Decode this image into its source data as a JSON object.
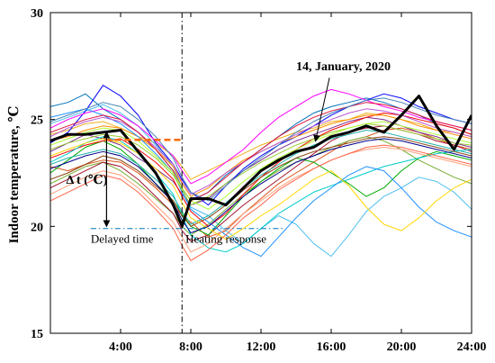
{
  "chart_data": {
    "type": "line",
    "ylabel": "Indoor temperature, ℃",
    "xlabel": "",
    "xlim": [
      0,
      24
    ],
    "ylim": [
      15,
      30
    ],
    "xticks": [
      {
        "v": 4,
        "label": "4:00"
      },
      {
        "v": 8,
        "label": "8:00"
      },
      {
        "v": 12,
        "label": "12:00"
      },
      {
        "v": 16,
        "label": "16:00"
      },
      {
        "v": 20,
        "label": "20:00"
      },
      {
        "v": 24,
        "label": "24:00"
      }
    ],
    "yticks": [
      {
        "v": 15,
        "label": "15"
      },
      {
        "v": 20,
        "label": "20"
      },
      {
        "v": 25,
        "label": "25"
      },
      {
        "v": 30,
        "label": "30"
      }
    ],
    "grid": false,
    "legend": "none",
    "x": [
      0,
      1,
      2,
      3,
      4,
      5,
      6,
      7,
      7.5,
      8,
      9,
      10,
      11,
      12,
      13,
      14,
      15,
      16,
      17,
      18,
      19,
      20,
      21,
      22,
      23,
      24
    ],
    "highlight": {
      "label": "14, January, 2020",
      "color": "#000000",
      "values": [
        24.0,
        24.3,
        24.3,
        24.4,
        24.5,
        23.5,
        22.5,
        21.0,
        20.0,
        21.3,
        21.3,
        21.0,
        21.8,
        22.6,
        23.1,
        23.5,
        23.7,
        24.2,
        24.4,
        24.7,
        24.4,
        25.2,
        26.1,
        24.7,
        23.6,
        25.2
      ]
    },
    "series": [
      {
        "color": "#0072BD",
        "values": [
          25.6,
          25.8,
          26.2,
          25.5,
          25.0,
          24.4,
          23.6,
          22.6,
          21.8,
          21.2,
          21.6,
          22.4,
          23.0,
          23.6,
          24.2,
          24.8,
          25.3,
          25.6,
          25.8,
          26.0,
          25.8,
          25.5,
          25.2,
          24.8,
          24.6,
          24.3
        ]
      },
      {
        "color": "#D95319",
        "values": [
          22.8,
          22.6,
          22.9,
          23.1,
          23.0,
          22.5,
          21.8,
          21.0,
          20.5,
          20.2,
          19.5,
          19.8,
          20.6,
          21.3,
          22.0,
          22.5,
          23.0,
          23.5,
          24.0,
          24.2,
          24.5,
          24.6,
          24.4,
          24.1,
          23.8,
          23.6
        ]
      },
      {
        "color": "#EDB120",
        "values": [
          24.3,
          24.5,
          24.8,
          24.9,
          24.6,
          24.2,
          23.9,
          23.3,
          22.8,
          22.2,
          22.6,
          23.0,
          23.4,
          23.8,
          24.1,
          24.4,
          24.6,
          24.9,
          25.0,
          25.3,
          25.2,
          25.0,
          24.8,
          24.5,
          24.4,
          24.2
        ]
      },
      {
        "color": "#7E2F8E",
        "values": [
          23.5,
          23.9,
          24.3,
          24.1,
          23.8,
          23.2,
          22.7,
          22.1,
          21.5,
          21.0,
          21.3,
          22.0,
          22.6,
          23.1,
          23.6,
          24.0,
          24.3,
          24.6,
          24.9,
          25.1,
          25.0,
          24.7,
          24.4,
          24.2,
          23.9,
          23.7
        ]
      },
      {
        "color": "#77AC30",
        "values": [
          22.0,
          22.4,
          22.8,
          23.0,
          22.6,
          22.0,
          21.3,
          20.6,
          20.0,
          19.6,
          20.1,
          20.8,
          21.5,
          22.1,
          22.6,
          23.0,
          23.3,
          23.7,
          24.0,
          24.2,
          24.0,
          23.6,
          23.1,
          22.7,
          22.3,
          22.0
        ]
      },
      {
        "color": "#4DBEEE",
        "values": [
          24.8,
          25.1,
          25.4,
          25.7,
          25.3,
          24.7,
          23.8,
          22.8,
          21.8,
          20.9,
          20.5,
          19.8,
          19.2,
          19.9,
          20.5,
          20.1,
          19.2,
          18.6,
          19.6,
          20.7,
          21.4,
          21.8,
          22.3,
          22.1,
          21.6,
          20.8
        ]
      },
      {
        "color": "#A2142F",
        "values": [
          21.8,
          22.2,
          22.6,
          23.0,
          22.8,
          22.2,
          21.4,
          20.6,
          19.8,
          19.3,
          19.6,
          20.3,
          21.0,
          21.6,
          22.2,
          22.8,
          23.4,
          24.0,
          24.4,
          24.6,
          24.7,
          24.5,
          24.3,
          24.0,
          23.8,
          23.5
        ]
      },
      {
        "color": "#0000FF",
        "values": [
          23.9,
          24.4,
          25.4,
          26.6,
          26.1,
          25.2,
          23.9,
          22.9,
          22.2,
          21.6,
          21.0,
          21.9,
          22.7,
          23.3,
          23.8,
          24.2,
          24.7,
          25.2,
          25.6,
          25.9,
          26.2,
          26.0,
          25.6,
          25.3,
          25.0,
          24.8
        ]
      },
      {
        "color": "#00AA00",
        "values": [
          22.5,
          23.1,
          23.7,
          24.0,
          23.6,
          22.9,
          22.0,
          21.2,
          20.6,
          20.0,
          19.6,
          20.5,
          21.4,
          22.1,
          22.7,
          23.2,
          23.0,
          22.5,
          22.0,
          21.4,
          21.8,
          22.6,
          23.2,
          23.5,
          23.3,
          23.1
        ]
      },
      {
        "color": "#FF0000",
        "values": [
          23.2,
          23.5,
          23.8,
          24.0,
          24.1,
          23.6,
          23.0,
          22.2,
          21.4,
          20.7,
          20.0,
          20.6,
          21.5,
          22.3,
          23.0,
          23.6,
          24.1,
          24.5,
          24.8,
          25.1,
          25.3,
          25.2,
          25.0,
          24.8,
          24.6,
          24.3
        ]
      },
      {
        "color": "#FF00FF",
        "values": [
          24.6,
          25.0,
          25.3,
          25.5,
          25.2,
          24.7,
          24.0,
          23.3,
          22.6,
          22.0,
          22.4,
          23.0,
          23.6,
          24.4,
          25.1,
          25.6,
          26.1,
          26.4,
          26.2,
          25.9,
          25.6,
          25.4,
          25.1,
          24.9,
          24.7,
          24.5
        ]
      },
      {
        "color": "#00CCCC",
        "values": [
          23.0,
          23.4,
          23.9,
          24.2,
          24.0,
          23.4,
          22.5,
          21.5,
          20.5,
          19.6,
          19.0,
          18.8,
          19.2,
          19.9,
          20.6,
          21.1,
          21.6,
          21.9,
          22.2,
          22.5,
          22.8,
          23.0,
          23.2,
          23.4,
          23.5,
          23.6
        ]
      },
      {
        "color": "#FF8C00",
        "values": [
          24.0,
          24.2,
          24.5,
          24.7,
          24.6,
          24.2,
          23.6,
          22.8,
          22.0,
          21.4,
          21.8,
          22.5,
          23.1,
          23.5,
          23.9,
          24.2,
          24.5,
          24.8,
          25.0,
          25.2,
          25.2,
          25.0,
          24.7,
          24.5,
          24.3,
          24.1
        ]
      },
      {
        "color": "#8B4513",
        "values": [
          22.2,
          22.5,
          22.9,
          23.3,
          23.1,
          22.6,
          21.9,
          21.2,
          20.5,
          20.0,
          20.4,
          21.0,
          21.7,
          22.3,
          22.8,
          23.2,
          23.5,
          23.7,
          23.9,
          24.1,
          24.2,
          24.1,
          23.9,
          23.7,
          23.5,
          23.3
        ]
      },
      {
        "color": "#1E90FF",
        "values": [
          25.1,
          25.3,
          25.5,
          25.2,
          24.8,
          24.2,
          23.4,
          22.5,
          21.6,
          20.8,
          20.2,
          19.6,
          19.0,
          18.6,
          19.5,
          20.4,
          21.2,
          21.8,
          22.4,
          22.8,
          22.6,
          21.8,
          20.9,
          20.2,
          19.8,
          19.5
        ]
      },
      {
        "color": "#9ACD32",
        "values": [
          23.6,
          23.9,
          24.1,
          24.3,
          24.2,
          23.8,
          23.2,
          22.4,
          21.7,
          21.0,
          21.4,
          22.0,
          22.5,
          23.0,
          23.4,
          23.8,
          24.1,
          24.4,
          24.6,
          24.8,
          24.7,
          24.5,
          24.3,
          24.1,
          23.9,
          23.8
        ]
      },
      {
        "color": "#FFA07A",
        "values": [
          21.5,
          21.9,
          22.3,
          22.6,
          22.4,
          21.8,
          21.0,
          20.2,
          19.5,
          18.8,
          19.2,
          19.9,
          20.6,
          21.2,
          21.8,
          22.3,
          22.7,
          23.1,
          23.4,
          23.6,
          23.7,
          23.6,
          23.4,
          23.2,
          23.0,
          22.8
        ]
      },
      {
        "color": "#BA55D3",
        "values": [
          24.2,
          24.6,
          24.9,
          25.1,
          24.9,
          24.4,
          23.7,
          22.9,
          22.1,
          21.5,
          21.9,
          22.5,
          23.0,
          23.5,
          23.9,
          24.3,
          24.7,
          25.0,
          25.3,
          25.5,
          25.4,
          25.2,
          24.9,
          24.6,
          24.4,
          24.2
        ]
      },
      {
        "color": "#20B2AA",
        "values": [
          22.9,
          23.2,
          23.4,
          23.6,
          23.4,
          22.9,
          22.2,
          21.4,
          20.7,
          20.1,
          20.5,
          21.1,
          21.8,
          22.4,
          22.9,
          23.4,
          23.8,
          24.1,
          24.3,
          24.5,
          24.4,
          24.2,
          24.0,
          23.8,
          23.6,
          23.4
        ]
      },
      {
        "color": "#FFD700",
        "values": [
          23.3,
          23.6,
          23.9,
          24.1,
          23.9,
          23.4,
          22.7,
          21.9,
          21.1,
          20.4,
          19.9,
          19.4,
          19.9,
          20.5,
          21.0,
          21.6,
          22.2,
          22.6,
          21.9,
          20.9,
          20.1,
          19.8,
          20.4,
          21.2,
          21.8,
          22.2
        ]
      },
      {
        "color": "#DC143C",
        "values": [
          24.4,
          24.7,
          25.0,
          25.2,
          25.0,
          24.4,
          23.6,
          22.6,
          21.8,
          21.2,
          21.6,
          22.3,
          23.0,
          23.6,
          24.2,
          24.7,
          25.1,
          25.4,
          25.6,
          25.8,
          25.7,
          25.5,
          25.2,
          24.9,
          24.7,
          24.5
        ]
      },
      {
        "color": "#00008B",
        "values": [
          22.7,
          23.0,
          23.3,
          23.5,
          23.3,
          22.8,
          22.0,
          21.1,
          20.3,
          19.7,
          20.0,
          20.7,
          21.4,
          22.0,
          22.5,
          23.0,
          23.3,
          23.6,
          23.8,
          24.0,
          24.1,
          24.0,
          23.8,
          23.6,
          23.4,
          23.2
        ]
      },
      {
        "color": "#ADFF2F",
        "values": [
          23.8,
          24.1,
          24.4,
          24.6,
          24.5,
          24.0,
          23.3,
          22.5,
          21.8,
          21.2,
          20.8,
          21.4,
          22.1,
          22.7,
          23.2,
          23.6,
          24.0,
          24.3,
          24.6,
          24.8,
          24.9,
          24.7,
          24.5,
          24.3,
          24.1,
          23.9
        ]
      },
      {
        "color": "#FF6347",
        "values": [
          21.2,
          21.6,
          22.0,
          22.4,
          22.2,
          21.6,
          20.8,
          19.9,
          19.1,
          18.4,
          18.9,
          19.6,
          20.4,
          21.0,
          21.7,
          22.2,
          22.7,
          23.1,
          23.4,
          23.7,
          23.8,
          23.7,
          23.5,
          23.3,
          23.1,
          22.9
        ]
      },
      {
        "color": "#4682B4",
        "values": [
          24.9,
          25.2,
          25.5,
          25.8,
          25.6,
          25.0,
          24.2,
          23.2,
          22.3,
          21.6,
          21.2,
          21.9,
          22.6,
          23.2,
          23.8,
          24.4,
          24.9,
          25.3,
          25.6,
          25.9,
          26.0,
          25.8,
          25.5,
          25.2,
          25.0,
          24.8
        ]
      }
    ],
    "annotations": {
      "date_label": "14, January, 2020",
      "delta_label": "Δ t (℃)",
      "delayed_label": "Delayed time",
      "heating_label": "Heating response",
      "vline_x": 7.5,
      "orange_dash_y": 24.05,
      "blue_dash_y": 19.9,
      "date_arrow_target": {
        "x": 15,
        "y": 23.9
      },
      "delta_arrow": {
        "x": 3.2,
        "y_top": 24.5,
        "y_bottom": 20.0
      },
      "delta_text_pos": {
        "x": 0.9,
        "y": 22.0
      },
      "delayed_text_pos": {
        "x": 2.3,
        "y": 19.7
      },
      "heating_text_pos": {
        "x": 7.7,
        "y": 19.7
      },
      "date_text_pos": {
        "x": 14.0,
        "y": 27.3
      }
    }
  }
}
